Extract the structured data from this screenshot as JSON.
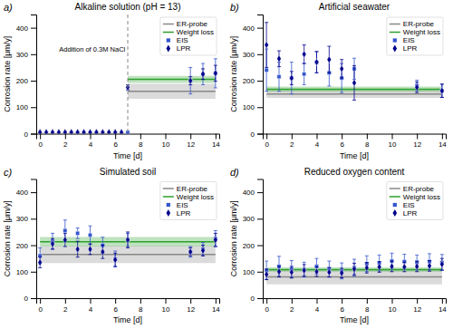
{
  "chart_data": [
    {
      "type": "line",
      "title": "Alkaline solution (pH = 13)",
      "subtitle": "a)",
      "x_label": "Time [d]",
      "y_label": "Corrosion rate [μm/y]",
      "xlim": [
        -0.3,
        14.3
      ],
      "xticks": [
        0,
        2,
        4,
        6,
        8,
        10,
        12,
        14
      ],
      "ylim": [
        0,
        450
      ],
      "yticks": [
        0,
        100,
        200,
        300,
        400
      ],
      "grid": false,
      "legend": "upper right",
      "series": [
        {
          "name": "ER-probe",
          "type": "band",
          "color": "#888888",
          "x": [
            7,
            14
          ],
          "values": [
            160,
            160
          ],
          "errors": [
            28,
            28
          ]
        },
        {
          "name": "Weight loss",
          "type": "band",
          "color": "#2ca02c",
          "x": [
            7,
            14
          ],
          "values": [
            205,
            205
          ],
          "errors": [
            13,
            13
          ]
        },
        {
          "name": "EIS",
          "type": "scatter",
          "marker": "square",
          "color": "#3355cc",
          "x": [
            7,
            12,
            13,
            14
          ],
          "values": [
            5,
            200,
            225,
            228
          ],
          "errors": [
            5,
            50,
            40,
            55
          ]
        },
        {
          "name": "LPR",
          "type": "scatter",
          "marker": "diamond",
          "color": "#00008b",
          "x": [
            0,
            0.5,
            1,
            1.5,
            2,
            2.5,
            3,
            3.5,
            4,
            4.5,
            5,
            5.5,
            6,
            6.5,
            7,
            12,
            13,
            14
          ],
          "values": [
            5,
            5,
            5,
            5,
            5,
            5,
            5,
            5,
            5,
            5,
            5,
            5,
            5,
            5,
            175,
            200,
            225,
            228
          ],
          "errors": [
            2,
            2,
            2,
            2,
            2,
            2,
            2,
            2,
            2,
            2,
            2,
            2,
            2,
            2,
            10,
            15,
            20,
            30
          ]
        }
      ],
      "vlines": [
        {
          "x": 7,
          "color": "#888888",
          "line_style": "dashed"
        }
      ],
      "annotations": [
        {
          "text": "Addition of 0.3M NaCl",
          "x": 6.8,
          "y": 310
        }
      ]
    },
    {
      "type": "line",
      "title": "Artificial seawater",
      "subtitle": "b)",
      "x_label": "Time [d]",
      "y_label": "Corrosion rate [μm/y]",
      "xlim": [
        -0.3,
        14.3
      ],
      "xticks": [
        0,
        2,
        4,
        6,
        8,
        10,
        12,
        14
      ],
      "ylim": [
        0,
        450
      ],
      "yticks": [
        0,
        100,
        200,
        300,
        400
      ],
      "grid": false,
      "legend": "upper right",
      "series": [
        {
          "name": "ER-probe",
          "type": "band",
          "color": "#888888",
          "x": [
            0,
            14
          ],
          "values": [
            150,
            150
          ],
          "errors": [
            15,
            15
          ]
        },
        {
          "name": "Weight loss",
          "type": "band",
          "color": "#2ca02c",
          "x": [
            0,
            14
          ],
          "values": [
            168,
            168
          ],
          "errors": [
            10,
            10
          ]
        },
        {
          "name": "EIS",
          "type": "scatter",
          "marker": "square",
          "color": "#3355cc",
          "x": [
            0,
            1,
            2,
            3,
            4,
            5,
            6,
            7,
            12,
            14
          ],
          "values": [
            240,
            215,
            210,
            225,
            270,
            230,
            210,
            245,
            182,
            162
          ],
          "errors": [
            80,
            55,
            60,
            40,
            40,
            50,
            55,
            40,
            20,
            25
          ]
        },
        {
          "name": "LPR",
          "type": "scatter",
          "marker": "diamond",
          "color": "#00008b",
          "x": [
            0,
            1,
            2,
            3,
            4,
            5,
            6,
            7,
            12,
            14
          ],
          "values": [
            335,
            283,
            210,
            300,
            270,
            280,
            245,
            192,
            175,
            162
          ],
          "errors": [
            85,
            30,
            25,
            35,
            40,
            50,
            35,
            65,
            20,
            25
          ]
        }
      ]
    },
    {
      "type": "line",
      "title": "Simulated soil",
      "subtitle": "c)",
      "x_label": "Time [d]",
      "y_label": "Corrosion rate [μm/y]",
      "xlim": [
        -0.3,
        14.3
      ],
      "xticks": [
        0,
        2,
        4,
        6,
        8,
        10,
        12,
        14
      ],
      "ylim": [
        0,
        450
      ],
      "yticks": [
        0,
        100,
        200,
        300,
        400
      ],
      "grid": false,
      "legend": "upper right",
      "series": [
        {
          "name": "ER-probe",
          "type": "band",
          "color": "#888888",
          "x": [
            0,
            14
          ],
          "values": [
            165,
            165
          ],
          "errors": [
            32,
            32
          ]
        },
        {
          "name": "Weight loss",
          "type": "band",
          "color": "#2ca02c",
          "x": [
            0,
            14
          ],
          "values": [
            213,
            213
          ],
          "errors": [
            18,
            18
          ]
        },
        {
          "name": "EIS",
          "type": "scatter",
          "marker": "square",
          "color": "#3355cc",
          "x": [
            0,
            1,
            2,
            3,
            4,
            5,
            6,
            7,
            12,
            13,
            14
          ],
          "values": [
            160,
            215,
            255,
            245,
            238,
            200,
            148,
            220,
            175,
            185,
            225
          ],
          "errors": [
            30,
            30,
            40,
            20,
            35,
            30,
            30,
            25,
            20,
            25,
            30
          ]
        },
        {
          "name": "LPR",
          "type": "scatter",
          "marker": "diamond",
          "color": "#00008b",
          "x": [
            0,
            1,
            2,
            3,
            4,
            5,
            6,
            7,
            12,
            13,
            14
          ],
          "values": [
            135,
            205,
            220,
            185,
            185,
            175,
            145,
            220,
            175,
            180,
            220
          ],
          "errors": [
            20,
            20,
            25,
            30,
            20,
            25,
            25,
            30,
            15,
            20,
            25
          ]
        }
      ]
    },
    {
      "type": "line",
      "title": "Reduced oxygen content",
      "subtitle": "d)",
      "x_label": "Time [d]",
      "y_label": "Corrosion rate [μm/y]",
      "xlim": [
        -0.3,
        14.3
      ],
      "xticks": [
        0,
        2,
        4,
        6,
        8,
        10,
        12,
        14
      ],
      "ylim": [
        0,
        450
      ],
      "yticks": [
        0,
        100,
        200,
        300,
        400
      ],
      "grid": false,
      "legend": "upper right",
      "series": [
        {
          "name": "ER-probe",
          "type": "band",
          "color": "#888888",
          "x": [
            0,
            14
          ],
          "values": [
            80,
            80
          ],
          "errors": [
            28,
            28
          ]
        },
        {
          "name": "Weight loss",
          "type": "band",
          "color": "#2ca02c",
          "x": [
            0,
            14
          ],
          "values": [
            108,
            108
          ],
          "errors": [
            8,
            8
          ]
        },
        {
          "name": "EIS",
          "type": "scatter",
          "marker": "square",
          "color": "#3355cc",
          "x": [
            0,
            1,
            2,
            3,
            4,
            5,
            6,
            7,
            8,
            9,
            10,
            11,
            12,
            13,
            14
          ],
          "values": [
            105,
            120,
            110,
            108,
            120,
            110,
            103,
            115,
            130,
            133,
            140,
            138,
            135,
            138,
            135
          ],
          "errors": [
            35,
            38,
            32,
            28,
            30,
            30,
            30,
            32,
            30,
            30,
            30,
            28,
            28,
            30,
            30
          ]
        },
        {
          "name": "LPR",
          "type": "scatter",
          "marker": "diamond",
          "color": "#00008b",
          "x": [
            0,
            1,
            2,
            3,
            4,
            5,
            6,
            7,
            8,
            9,
            10,
            11,
            12,
            13,
            14
          ],
          "values": [
            90,
            100,
            98,
            105,
            100,
            98,
            95,
            110,
            115,
            118,
            120,
            118,
            120,
            122,
            128
          ],
          "errors": [
            20,
            20,
            22,
            22,
            18,
            18,
            18,
            22,
            20,
            20,
            20,
            18,
            20,
            20,
            22
          ]
        }
      ]
    }
  ]
}
